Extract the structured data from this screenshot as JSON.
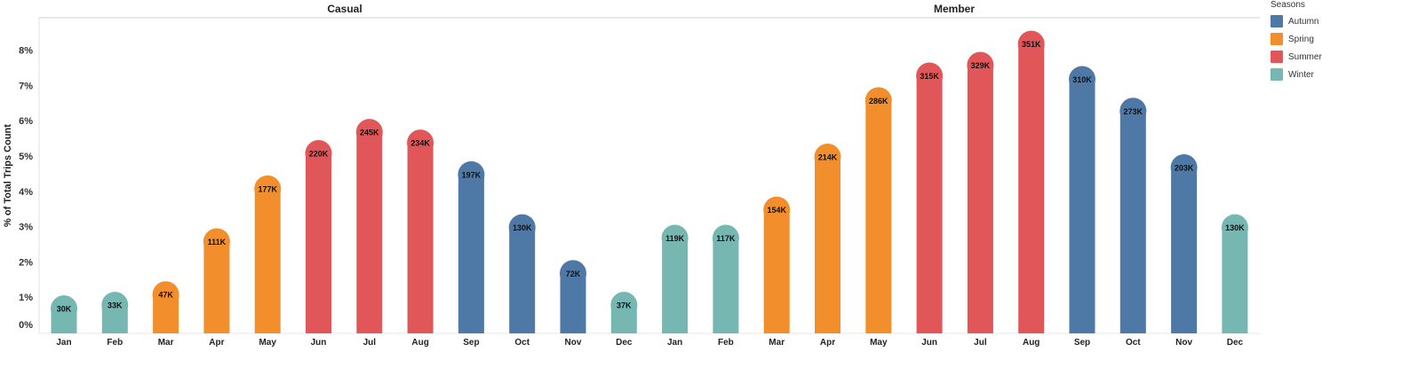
{
  "chart_data": {
    "type": "bar",
    "ylabel": "% of Total Trips Count",
    "y_ticks": [
      "0%",
      "1%",
      "2%",
      "3%",
      "4%",
      "5%",
      "6%",
      "7%",
      "8%"
    ],
    "ylim": [
      0,
      8.8
    ],
    "panels": [
      {
        "name": "Casual",
        "categories": [
          "Jan",
          "Feb",
          "Mar",
          "Apr",
          "May",
          "Jun",
          "Jul",
          "Aug",
          "Sep",
          "Oct",
          "Nov",
          "Dec"
        ],
        "values": [
          0.7,
          0.8,
          1.1,
          2.6,
          4.1,
          5.1,
          5.7,
          5.4,
          4.5,
          3.0,
          1.7,
          0.8
        ],
        "labels": [
          "30K",
          "33K",
          "47K",
          "111K",
          "177K",
          "220K",
          "245K",
          "234K",
          "197K",
          "130K",
          "72K",
          "37K"
        ],
        "seasons": [
          "Winter",
          "Winter",
          "Spring",
          "Spring",
          "Spring",
          "Summer",
          "Summer",
          "Summer",
          "Autumn",
          "Autumn",
          "Autumn",
          "Winter"
        ]
      },
      {
        "name": "Member",
        "categories": [
          "Jan",
          "Feb",
          "Mar",
          "Apr",
          "May",
          "Jun",
          "Jul",
          "Aug",
          "Sep",
          "Oct",
          "Nov",
          "Dec"
        ],
        "values": [
          2.7,
          2.7,
          3.5,
          5.0,
          6.6,
          7.3,
          7.6,
          8.2,
          7.2,
          6.3,
          4.7,
          3.0
        ],
        "labels": [
          "119K",
          "117K",
          "154K",
          "214K",
          "286K",
          "315K",
          "329K",
          "351K",
          "310K",
          "273K",
          "203K",
          "130K"
        ],
        "seasons": [
          "Winter",
          "Winter",
          "Spring",
          "Spring",
          "Spring",
          "Summer",
          "Summer",
          "Summer",
          "Autumn",
          "Autumn",
          "Autumn",
          "Winter"
        ]
      }
    ],
    "legend": {
      "title": "Seasons",
      "placement": "top-right",
      "items": [
        {
          "name": "Autumn",
          "color": "#4e79a7"
        },
        {
          "name": "Spring",
          "color": "#f28e2b"
        },
        {
          "name": "Summer",
          "color": "#e15759"
        },
        {
          "name": "Winter",
          "color": "#76b7b2"
        }
      ]
    },
    "grid": false
  }
}
